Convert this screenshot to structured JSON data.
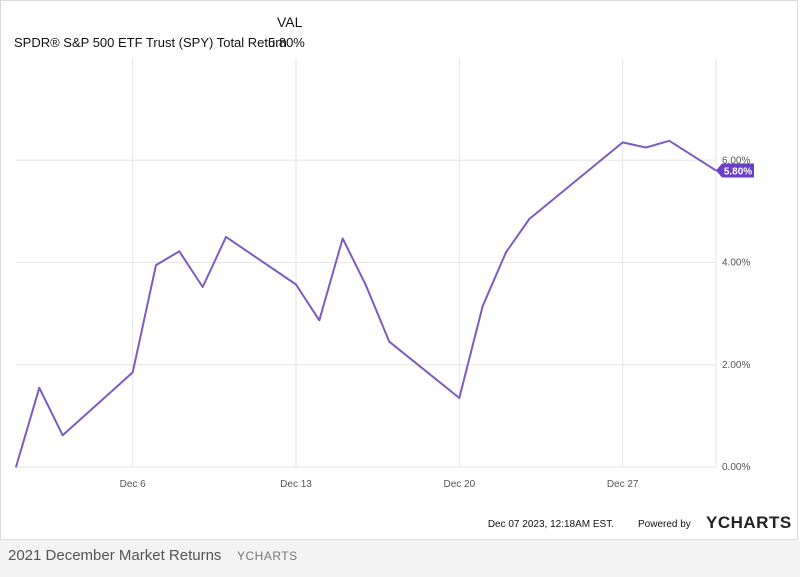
{
  "header": {
    "column_label": "VAL"
  },
  "legend": {
    "series_name": "SPDR® S&P 500 ETF Trust (SPY) Total Return",
    "series_value": "5.80%"
  },
  "footer": {
    "timestamp": "Dec 07 2023, 12:18AM EST.",
    "powered_by": "Powered by",
    "brand": "YCHARTS"
  },
  "caption": {
    "title": "2021 December Market Returns",
    "brand": "YCHARTS"
  },
  "colors": {
    "series": "#7b5cc4",
    "badge": "#6a3fc8",
    "grid": "#e6e6e6"
  },
  "chart_data": {
    "type": "line",
    "title": "",
    "xlabel": "",
    "ylabel": "",
    "ylim": [
      0,
      8.0
    ],
    "y_ticks": [
      "0.00%",
      "2.00%",
      "4.00%",
      "6.00%"
    ],
    "y_tick_values": [
      0,
      2,
      4,
      6
    ],
    "x_ticks": [
      "Dec 6",
      "Dec 13",
      "Dec 20",
      "Dec 27"
    ],
    "x_tick_values": [
      "2021-12-06",
      "2021-12-13",
      "2021-12-20",
      "2021-12-27"
    ],
    "xlim": [
      "2021-12-01",
      "2021-12-31"
    ],
    "last_value_label": "5.80%",
    "grid": true,
    "legend_position": "top-left",
    "series": [
      {
        "name": "SPDR® S&P 500 ETF Trust (SPY) Total Return",
        "x": [
          "2021-12-01",
          "2021-12-02",
          "2021-12-03",
          "2021-12-06",
          "2021-12-07",
          "2021-12-08",
          "2021-12-09",
          "2021-12-10",
          "2021-12-13",
          "2021-12-14",
          "2021-12-15",
          "2021-12-16",
          "2021-12-17",
          "2021-12-20",
          "2021-12-21",
          "2021-12-22",
          "2021-12-23",
          "2021-12-27",
          "2021-12-28",
          "2021-12-29",
          "2021-12-31"
        ],
        "values": [
          0.0,
          1.55,
          0.62,
          1.85,
          3.95,
          4.22,
          3.52,
          4.5,
          3.57,
          2.87,
          4.47,
          3.55,
          2.45,
          1.35,
          3.15,
          4.2,
          4.85,
          6.35,
          6.25,
          6.38,
          5.8
        ]
      }
    ]
  }
}
